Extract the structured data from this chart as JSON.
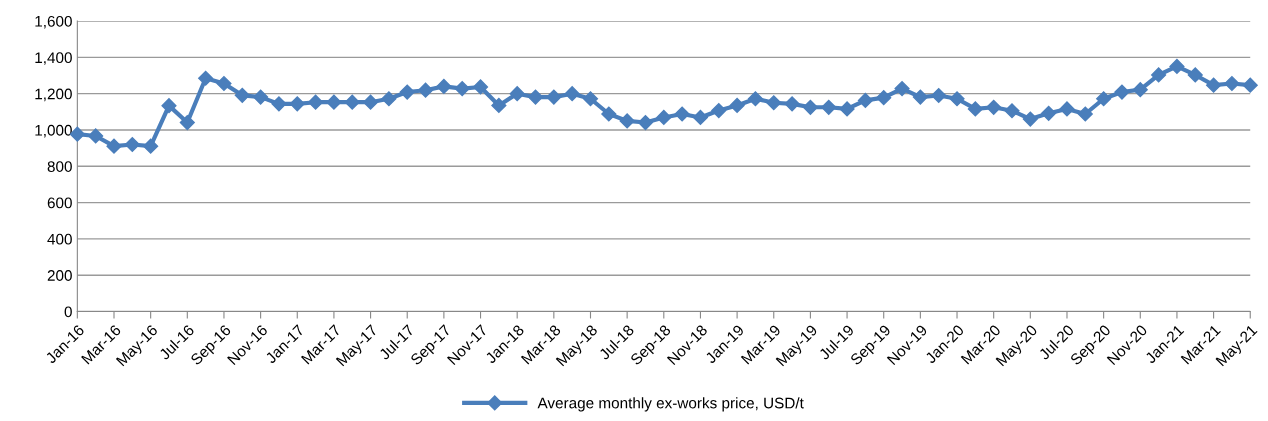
{
  "chart_data": {
    "type": "line",
    "categories": [
      "Jan-16",
      null,
      "Mar-16",
      null,
      "May-16",
      null,
      "Jul-16",
      null,
      "Sep-16",
      null,
      "Nov-16",
      null,
      "Jan-17",
      null,
      "Mar-17",
      null,
      "May-17",
      null,
      "Jul-17",
      null,
      "Sep-17",
      null,
      "Nov-17",
      null,
      "Jan-18",
      null,
      "Mar-18",
      null,
      "May-18",
      null,
      "Jul-18",
      null,
      "Sep-18",
      null,
      "Nov-18",
      null,
      "Jan-19",
      null,
      "Mar-19",
      null,
      "May-19",
      null,
      "Jul-19",
      null,
      "Sep-19",
      null,
      "Nov-19",
      null,
      "Jan-20",
      null,
      "Mar-20",
      null,
      "May-20",
      null,
      "Jul-20",
      null,
      "Sep-20",
      null,
      "Nov-20",
      null,
      "Jan-21",
      null,
      "Mar-21",
      null,
      "May-21"
    ],
    "series": [
      {
        "name": "Average monthly ex-works price, USD/t",
        "color": "#4a7ebb",
        "values": [
          977,
          967,
          911,
          920,
          911,
          1134,
          1041,
          1285,
          1256,
          1191,
          1181,
          1144,
          1144,
          1153,
          1153,
          1153,
          1153,
          1172,
          1209,
          1219,
          1240,
          1228,
          1237,
          1135,
          1200,
          1181,
          1181,
          1200,
          1172,
          1088,
          1050,
          1041,
          1069,
          1088,
          1069,
          1107,
          1135,
          1172,
          1150,
          1144,
          1125,
          1125,
          1116,
          1163,
          1178,
          1228,
          1181,
          1190,
          1172,
          1116,
          1125,
          1106,
          1060,
          1092,
          1116,
          1088,
          1172,
          1209,
          1222,
          1303,
          1350,
          1303,
          1247,
          1256,
          1247
        ]
      }
    ],
    "ylim": [
      0,
      1600
    ],
    "yticks": [
      0,
      200,
      400,
      600,
      800,
      {
        "value": 1000,
        "label": "1,000"
      },
      {
        "value": 1200,
        "label": "1,200"
      },
      {
        "value": 1400,
        "label": "1,400"
      },
      {
        "value": 1600,
        "label": "1,600"
      }
    ],
    "grid": "y",
    "legend": "bottom",
    "marker": "diamond",
    "line_style": "solid"
  }
}
